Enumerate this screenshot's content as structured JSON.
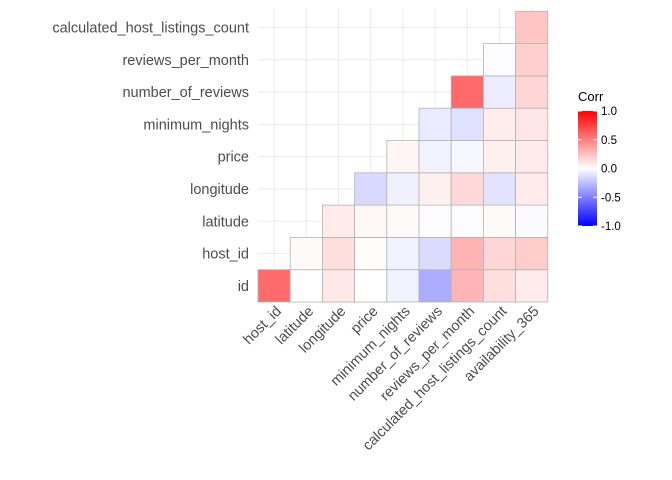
{
  "chart_data": {
    "type": "heatmap",
    "variables": [
      "id",
      "host_id",
      "latitude",
      "longitude",
      "price",
      "minimum_nights",
      "number_of_reviews",
      "reviews_per_month",
      "calculated_host_listings_count",
      "availability_365"
    ],
    "x_categories": [
      "host_id",
      "latitude",
      "longitude",
      "price",
      "minimum_nights",
      "number_of_reviews",
      "reviews_per_month",
      "calculated_host_listings_count",
      "availability_365"
    ],
    "y_categories": [
      "id",
      "host_id",
      "latitude",
      "longitude",
      "price",
      "minimum_nights",
      "number_of_reviews",
      "reviews_per_month",
      "calculated_host_listings_count"
    ],
    "cells": [
      {
        "row": "id",
        "col": "host_id",
        "value": 0.58
      },
      {
        "row": "id",
        "col": "latitude",
        "value": 0.0
      },
      {
        "row": "id",
        "col": "longitude",
        "value": 0.09
      },
      {
        "row": "id",
        "col": "price",
        "value": 0.0
      },
      {
        "row": "id",
        "col": "minimum_nights",
        "value": -0.05
      },
      {
        "row": "id",
        "col": "number_of_reviews",
        "value": -0.32
      },
      {
        "row": "id",
        "col": "reviews_per_month",
        "value": 0.29
      },
      {
        "row": "id",
        "col": "calculated_host_listings_count",
        "value": 0.13
      },
      {
        "row": "id",
        "col": "availability_365",
        "value": 0.08
      },
      {
        "row": "host_id",
        "col": "latitude",
        "value": 0.02
      },
      {
        "row": "host_id",
        "col": "longitude",
        "value": 0.13
      },
      {
        "row": "host_id",
        "col": "price",
        "value": 0.01
      },
      {
        "row": "host_id",
        "col": "minimum_nights",
        "value": -0.05
      },
      {
        "row": "host_id",
        "col": "number_of_reviews",
        "value": -0.14
      },
      {
        "row": "host_id",
        "col": "reviews_per_month",
        "value": 0.3
      },
      {
        "row": "host_id",
        "col": "calculated_host_listings_count",
        "value": 0.16
      },
      {
        "row": "host_id",
        "col": "availability_365",
        "value": 0.2
      },
      {
        "row": "latitude",
        "col": "longitude",
        "value": 0.08
      },
      {
        "row": "latitude",
        "col": "price",
        "value": 0.03
      },
      {
        "row": "latitude",
        "col": "minimum_nights",
        "value": 0.02
      },
      {
        "row": "latitude",
        "col": "number_of_reviews",
        "value": -0.01
      },
      {
        "row": "latitude",
        "col": "reviews_per_month",
        "value": -0.01
      },
      {
        "row": "latitude",
        "col": "calculated_host_listings_count",
        "value": 0.02
      },
      {
        "row": "latitude",
        "col": "availability_365",
        "value": -0.02
      },
      {
        "row": "longitude",
        "col": "price",
        "value": -0.15
      },
      {
        "row": "longitude",
        "col": "minimum_nights",
        "value": -0.06
      },
      {
        "row": "longitude",
        "col": "number_of_reviews",
        "value": 0.06
      },
      {
        "row": "longitude",
        "col": "reviews_per_month",
        "value": 0.15
      },
      {
        "row": "longitude",
        "col": "calculated_host_listings_count",
        "value": -0.11
      },
      {
        "row": "longitude",
        "col": "availability_365",
        "value": 0.08
      },
      {
        "row": "price",
        "col": "minimum_nights",
        "value": 0.04
      },
      {
        "row": "price",
        "col": "number_of_reviews",
        "value": -0.05
      },
      {
        "row": "price",
        "col": "reviews_per_month",
        "value": -0.03
      },
      {
        "row": "price",
        "col": "calculated_host_listings_count",
        "value": 0.06
      },
      {
        "row": "price",
        "col": "availability_365",
        "value": 0.08
      },
      {
        "row": "minimum_nights",
        "col": "number_of_reviews",
        "value": -0.08
      },
      {
        "row": "minimum_nights",
        "col": "reviews_per_month",
        "value": -0.12
      },
      {
        "row": "minimum_nights",
        "col": "calculated_host_listings_count",
        "value": 0.07
      },
      {
        "row": "minimum_nights",
        "col": "availability_365",
        "value": 0.1
      },
      {
        "row": "number_of_reviews",
        "col": "reviews_per_month",
        "value": 0.59
      },
      {
        "row": "number_of_reviews",
        "col": "calculated_host_listings_count",
        "value": -0.07
      },
      {
        "row": "number_of_reviews",
        "col": "availability_365",
        "value": 0.17
      },
      {
        "row": "reviews_per_month",
        "col": "calculated_host_listings_count",
        "value": -0.01
      },
      {
        "row": "reviews_per_month",
        "col": "availability_365",
        "value": 0.19
      },
      {
        "row": "calculated_host_listings_count",
        "col": "availability_365",
        "value": 0.23
      }
    ],
    "color_scale": {
      "low": "#0000ff",
      "mid": "#ffffff",
      "high": "#ff0000",
      "limits": [
        -1,
        1
      ]
    },
    "legend": {
      "title": "Corr",
      "position": "right",
      "ticks": [
        1.0,
        0.5,
        0.0,
        -0.5,
        -1.0
      ],
      "tick_labels": [
        "1.0",
        "0.5",
        "0.0",
        "-0.5",
        "-1.0"
      ]
    },
    "grid": true,
    "cell_border_color": "#b3b3b3",
    "grid_color": "#ebebeb",
    "title": "",
    "xlabel": "",
    "ylabel": ""
  }
}
